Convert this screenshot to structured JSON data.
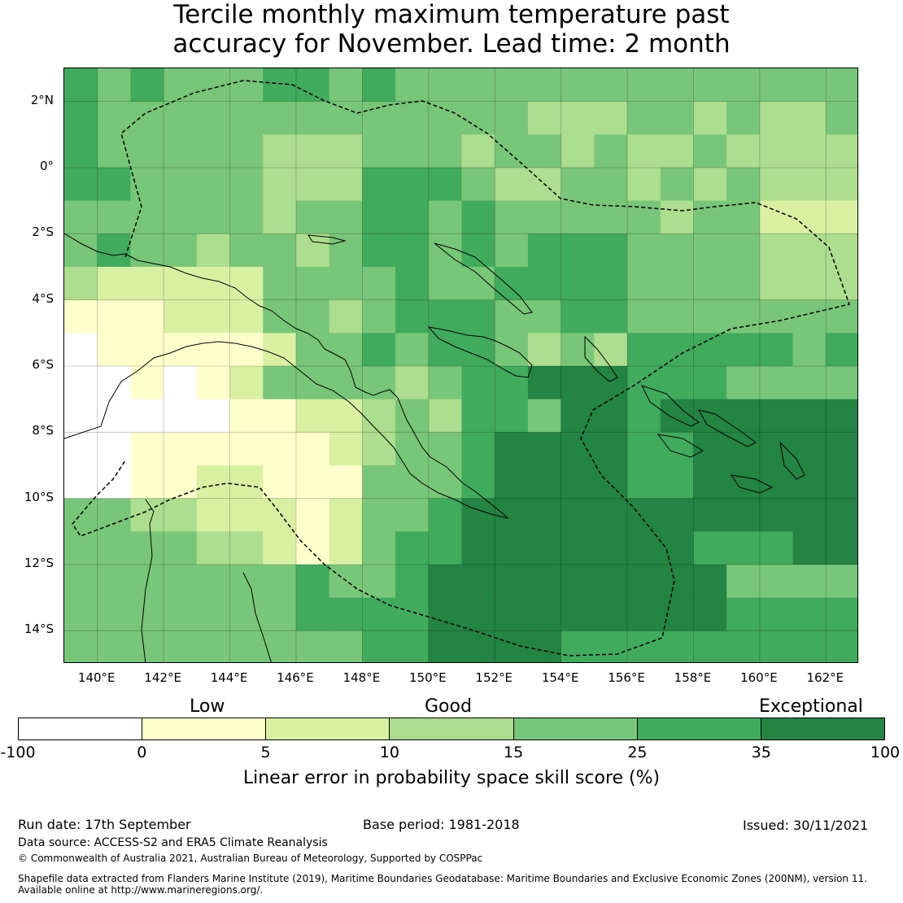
{
  "title": {
    "line1": "Tercile monthly maximum temperature past",
    "line2": "accuracy for November. Lead time: 2 month"
  },
  "map": {
    "lat_labels": [
      "2°N",
      "0°",
      "2°S",
      "4°S",
      "6°S",
      "8°S",
      "10°S",
      "12°S",
      "14°S"
    ],
    "lon_labels": [
      "140°E",
      "142°E",
      "144°E",
      "146°E",
      "148°E",
      "150°E",
      "152°E",
      "154°E",
      "156°E",
      "158°E",
      "160°E",
      "162°E"
    ],
    "lat_values": [
      2,
      0,
      -2,
      -4,
      -6,
      -8,
      -10,
      -12,
      -14
    ],
    "lon_values": [
      140,
      142,
      144,
      146,
      148,
      150,
      152,
      154,
      156,
      158,
      160,
      162
    ],
    "extent": {
      "lon_min": 139,
      "lon_max": 163,
      "lat_min": -15,
      "lat_max": 3
    },
    "grid": {
      "rows": 18,
      "cols": 24,
      "cell_degrees": 1,
      "category_rows": [
        "545444554544444444444444",
        "544444444444443334434334",
        "544444333444344343343333",
        "554444333555433443434333",
        "444444344554544444344222",
        "454434434554545554444333",
        "322222444454455554444333",
        "111222443455544554444444",
        "011111244545543435555545",
        "001012444434556665554444",
        "000001122343554665666666",
        "001111112344566665566666",
        "001122111444566665566666",
        "443322212445666666666666",
        "444433212455666666655566",
        "444444454456666666664444",
        "444444455556666666665555",
        "444444444556666555555555"
      ],
      "category_legend": "0 = -100..0, 1 = 0..5, 2 = 5..10, 3 = 10..15, 4 = 15..25, 5 = 25..35, 6 = 35..100"
    }
  },
  "colorbar": {
    "categories": [
      "Low",
      "Good",
      "Exceptional"
    ],
    "ticks": [
      "-100",
      "0",
      "5",
      "10",
      "15",
      "25",
      "35",
      "100"
    ],
    "colors": [
      "#ffffff",
      "#ffffcc",
      "#d9f0a3",
      "#addd8e",
      "#78c679",
      "#41ab5d",
      "#238443"
    ],
    "label": "Linear error in probability space skill score (%)"
  },
  "footer": {
    "run_date": "Run date: 17th September",
    "base_period": "Base period: 1981-2018",
    "issued": "Issued: 30/11/2021",
    "data_source": "Data source: ACCESS-S2 and ERA5 Climate Reanalysis",
    "copyright": "© Commonwealth of Australia 2021, Australian Bureau of Meteorology, Supported by COSPPac",
    "shapefile_line1": "Shapefile data extracted from Flanders Marine Institute (2019), Maritime Boundaries Geodatabase: Maritime Boundaries and Exclusive Economic Zones (200NM), version 11.",
    "shapefile_line2": "Available online at http://www.marineregions.org/."
  }
}
